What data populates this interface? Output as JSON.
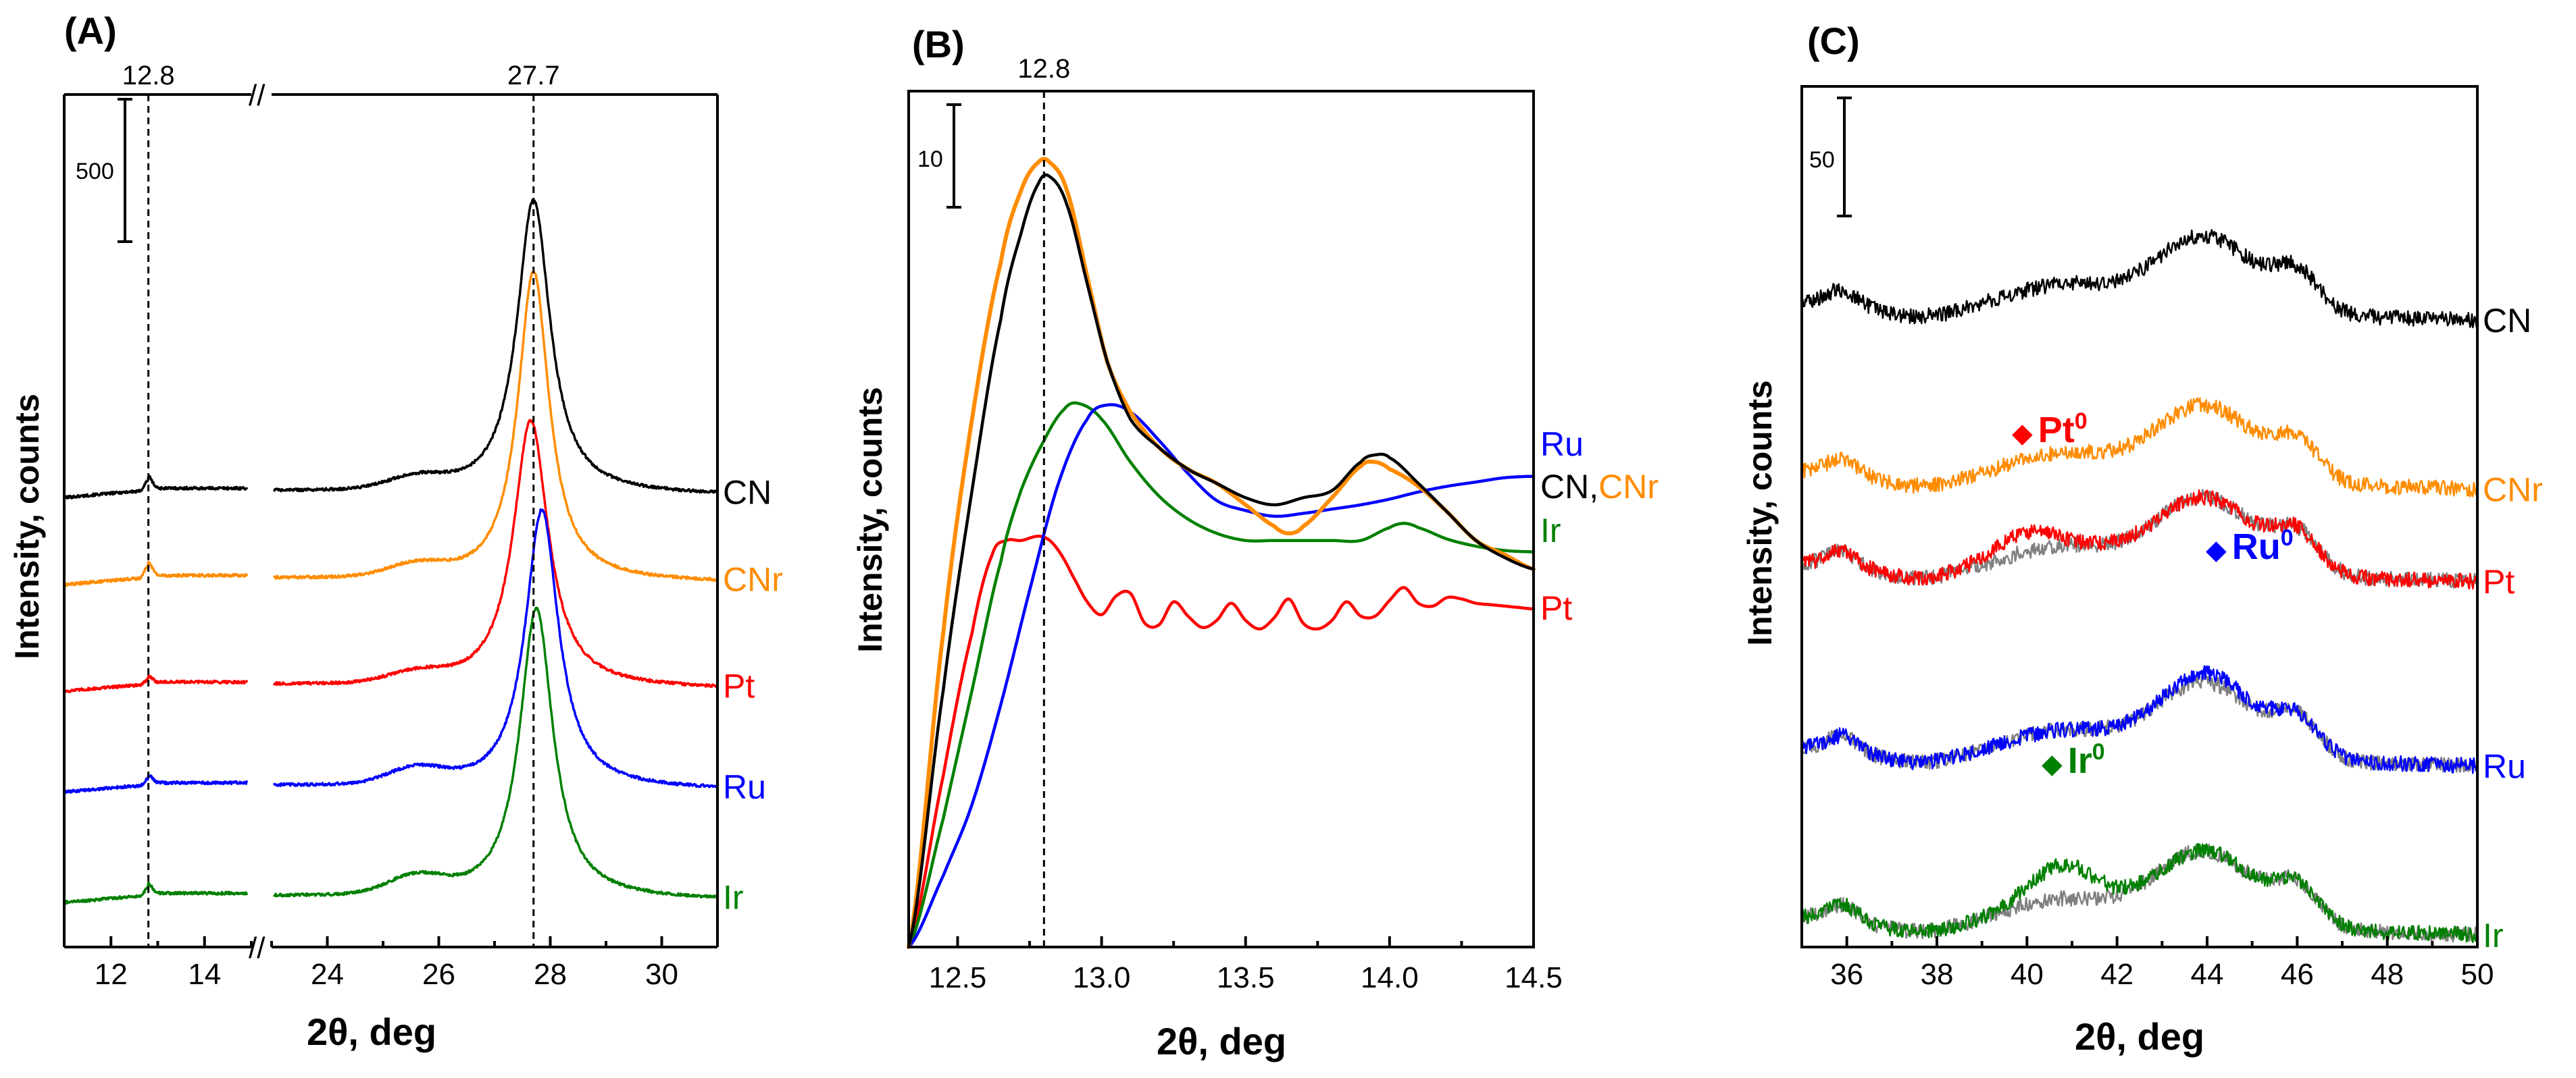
{
  "colors": {
    "CN": "#000000",
    "CNr": "#ff8c00",
    "Pt": "#ff0000",
    "Ru": "#0000ff",
    "Ir": "#008000",
    "reference": "#808080"
  },
  "chart_data": [
    {
      "panel": "(A)",
      "type": "line",
      "xlabel": "2θ, deg",
      "ylabel": "Intensity, counts",
      "x_segments": [
        [
          11,
          15
        ],
        [
          23,
          31
        ]
      ],
      "axis_break": "//",
      "x_ticks": [
        12,
        14,
        24,
        26,
        28,
        30
      ],
      "x_tick_labels": [
        "12",
        "14",
        "24",
        "26",
        "28",
        "30"
      ],
      "reference_lines": [
        {
          "x": 12.8,
          "label": "12.8"
        },
        {
          "x": 27.7,
          "label": "27.7"
        }
      ],
      "scale_bar": {
        "label": "500",
        "counts": 500
      },
      "ylim": [
        0,
        4400
      ],
      "series": [
        {
          "name": "CN",
          "label": "CN",
          "offset": 2350,
          "peak_x": 27.7,
          "peak_height": 1520,
          "peak_width": 0.36,
          "shoulder": 60,
          "small_peak": 60
        },
        {
          "name": "CNr",
          "label": "CNr",
          "offset": 1900,
          "peak_x": 27.7,
          "peak_height": 1600,
          "peak_width": 0.34,
          "shoulder": 60,
          "small_peak": 70
        },
        {
          "name": "Pt",
          "label": "Pt",
          "offset": 1350,
          "peak_x": 27.65,
          "peak_height": 1380,
          "peak_width": 0.38,
          "shoulder": 50,
          "small_peak": 30
        },
        {
          "name": "Ru",
          "label": "Ru",
          "offset": 830,
          "peak_x": 27.85,
          "peak_height": 1440,
          "peak_width": 0.36,
          "shoulder": 80,
          "small_peak": 40
        },
        {
          "name": "Ir",
          "label": "Ir",
          "offset": 260,
          "peak_x": 27.75,
          "peak_height": 1500,
          "peak_width": 0.36,
          "shoulder": 90,
          "small_peak": 50
        }
      ]
    },
    {
      "panel": "(B)",
      "type": "line",
      "xlabel": "2θ, deg",
      "ylabel": "Intensity, counts",
      "xlim": [
        12.33,
        14.5
      ],
      "x_ticks": [
        12.5,
        13.0,
        13.5,
        14.0,
        14.5
      ],
      "x_tick_labels": [
        "12.5",
        "13.0",
        "13.5",
        "14.0",
        "14.5"
      ],
      "reference_lines": [
        {
          "x": 12.8,
          "label": "12.8"
        }
      ],
      "scale_bar": {
        "label": "10",
        "counts": 10
      },
      "ylim": [
        0,
        60
      ],
      "series_labels": [
        {
          "text": "Ru",
          "color_key": "Ru"
        },
        {
          "text": "CN",
          "color_key": "CN"
        },
        {
          "text": ",",
          "color_key": "CN"
        },
        {
          "text": "CNr",
          "color_key": "CNr"
        },
        {
          "text": "Ir",
          "color_key": "Ir"
        },
        {
          "text": "Pt",
          "color_key": "Pt"
        }
      ],
      "series": [
        {
          "name": "CN",
          "x": [
            12.33,
            12.45,
            12.55,
            12.65,
            12.72,
            12.78,
            12.82,
            12.88,
            12.95,
            13.02,
            13.1,
            13.2,
            13.3,
            13.4,
            13.5,
            13.6,
            13.7,
            13.8,
            13.9,
            13.95,
            14.0,
            14.1,
            14.2,
            14.3,
            14.4,
            14.5
          ],
          "y": [
            0,
            18,
            32,
            44,
            50,
            53.5,
            54,
            52,
            46.5,
            41,
            37,
            35,
            33.5,
            32.5,
            31.5,
            31,
            31.5,
            32,
            34,
            34.5,
            34.3,
            32.5,
            30.5,
            28.5,
            27.3,
            26.5
          ]
        },
        {
          "name": "CNr",
          "x": [
            12.33,
            12.45,
            12.55,
            12.65,
            12.72,
            12.78,
            12.82,
            12.88,
            12.95,
            13.02,
            13.1,
            13.2,
            13.3,
            13.4,
            13.5,
            13.6,
            13.65,
            13.7,
            13.8,
            13.9,
            13.95,
            14.0,
            14.1,
            14.2,
            14.3,
            14.4,
            14.5
          ],
          "y": [
            0,
            22,
            37,
            48,
            53,
            55,
            55,
            53,
            47,
            41,
            37.5,
            35,
            33.5,
            32.5,
            31,
            29.5,
            29,
            29.5,
            31.5,
            33.7,
            34,
            33.5,
            32.3,
            30.5,
            28.5,
            27.5,
            26.5
          ]
        },
        {
          "name": "Ru",
          "x": [
            12.33,
            12.45,
            12.55,
            12.65,
            12.75,
            12.85,
            12.95,
            13.02,
            13.1,
            13.2,
            13.3,
            13.4,
            13.5,
            13.6,
            13.7,
            13.8,
            13.9,
            14.0,
            14.1,
            14.2,
            14.3,
            14.4,
            14.5
          ],
          "y": [
            0,
            5,
            10,
            17,
            25,
            32.5,
            37,
            38,
            37.5,
            35.5,
            33.2,
            31.3,
            30.6,
            30.2,
            30.4,
            30.7,
            31,
            31.4,
            31.9,
            32.3,
            32.6,
            32.9,
            33
          ]
        },
        {
          "name": "Ir",
          "x": [
            12.33,
            12.45,
            12.55,
            12.65,
            12.72,
            12.8,
            12.87,
            12.92,
            13.0,
            13.1,
            13.2,
            13.3,
            13.4,
            13.5,
            13.6,
            13.7,
            13.8,
            13.9,
            14.0,
            14.05,
            14.1,
            14.2,
            14.3,
            14.4,
            14.5
          ],
          "y": [
            0,
            9,
            18,
            27,
            32,
            35.5,
            37.7,
            38.1,
            37,
            34,
            31.6,
            30,
            29,
            28.5,
            28.5,
            28.5,
            28.5,
            28.5,
            29.4,
            29.7,
            29.4,
            28.6,
            28.1,
            27.8,
            27.7
          ]
        },
        {
          "name": "Pt",
          "x": [
            12.33,
            12.45,
            12.55,
            12.62,
            12.67,
            12.72,
            12.78,
            12.82,
            12.86,
            12.9,
            12.95,
            13.0,
            13.05,
            13.1,
            13.15,
            13.2,
            13.25,
            13.3,
            13.35,
            13.4,
            13.45,
            13.5,
            13.55,
            13.6,
            13.65,
            13.7,
            13.75,
            13.8,
            13.85,
            13.9,
            13.95,
            14.0,
            14.05,
            14.1,
            14.15,
            14.2,
            14.25,
            14.3,
            14.35,
            14.4,
            14.45,
            14.5
          ],
          "y": [
            0,
            12,
            22,
            27.5,
            28.5,
            28.5,
            28.8,
            28.5,
            27.5,
            26,
            24.2,
            23.3,
            24.6,
            24.8,
            22.7,
            22.6,
            24.2,
            23.2,
            22.4,
            22.9,
            24.1,
            22.9,
            22.3,
            23.1,
            24.4,
            22.7,
            22.3,
            22.9,
            24.2,
            23.2,
            23.2,
            24.3,
            25.2,
            24.1,
            23.9,
            24.5,
            24.4,
            24.1,
            24,
            23.9,
            23.8,
            23.7
          ]
        }
      ]
    },
    {
      "panel": "(C)",
      "type": "line",
      "xlabel": "2θ, deg",
      "ylabel": "Intensity, counts",
      "xlim": [
        35,
        50
      ],
      "x_ticks": [
        36,
        38,
        40,
        42,
        44,
        46,
        48,
        50
      ],
      "x_tick_labels": [
        "36",
        "38",
        "40",
        "42",
        "44",
        "46",
        "48",
        "50"
      ],
      "scale_bar": {
        "label": "50",
        "counts": 50
      },
      "ylim": [
        0,
        560
      ],
      "annotations": [
        {
          "marker": "◆",
          "text": "Pt",
          "sup": "0",
          "color_key": "Pt"
        },
        {
          "marker": "◆",
          "text": "Ru",
          "sup": "0",
          "color_key": "Ru"
        },
        {
          "marker": "◆",
          "text": "Ir",
          "sup": "0",
          "color_key": "Ir"
        }
      ],
      "series": [
        {
          "name": "CN",
          "label": "CN",
          "offset": 420,
          "extra_peak_amp": 0,
          "extra_peak_x": 0,
          "gray_reference": false
        },
        {
          "name": "CNr",
          "label": "CNr",
          "offset": 310,
          "extra_peak_amp": 0,
          "extra_peak_x": 0,
          "gray_reference": false
        },
        {
          "name": "Pt",
          "label": "Pt",
          "offset": 250,
          "extra_peak_amp": 12,
          "extra_peak_x": 39.9,
          "gray_reference": true
        },
        {
          "name": "Ru",
          "label": "Ru",
          "offset": 130,
          "extra_peak_amp": 6,
          "extra_peak_x": 44.1,
          "gray_reference": true
        },
        {
          "name": "Ir",
          "label": "Ir",
          "offset": 20,
          "extra_peak_amp": 22,
          "extra_peak_x": 40.8,
          "gray_reference": true
        }
      ]
    }
  ]
}
